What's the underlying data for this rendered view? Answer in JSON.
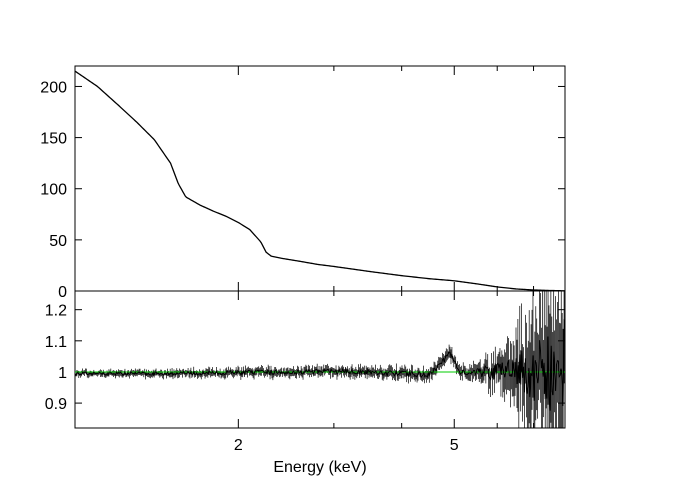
{
  "chart_data": [
    {
      "panel": "spectrum",
      "type": "line",
      "x_scale": "log",
      "xlim": [
        1.0,
        8.0
      ],
      "ylim": [
        0,
        220
      ],
      "ylabel": "",
      "xlabel": "",
      "yticks": [
        0,
        50,
        100,
        150,
        200
      ],
      "yticklabels": [
        "0",
        "50",
        "100",
        "150",
        "200"
      ],
      "series": [
        {
          "color": "#000000",
          "x": [
            1.0,
            1.1,
            1.2,
            1.3,
            1.4,
            1.5,
            1.55,
            1.6,
            1.7,
            1.8,
            1.9,
            2.0,
            2.1,
            2.2,
            2.25,
            2.3,
            2.4,
            2.6,
            2.8,
            3.0,
            3.5,
            4.0,
            4.5,
            5.0,
            5.5,
            6.0,
            6.5,
            7.0,
            7.5,
            8.0
          ],
          "y": [
            215,
            200,
            182,
            165,
            148,
            125,
            105,
            92,
            84,
            78,
            73,
            67,
            60,
            48,
            38,
            34,
            32,
            29,
            26,
            24,
            19,
            15,
            12,
            10,
            7,
            4,
            2,
            1,
            0.5,
            0.2
          ]
        }
      ]
    },
    {
      "panel": "ratio",
      "type": "line",
      "x_scale": "log",
      "xlim": [
        1.0,
        8.0
      ],
      "ylim": [
        0.82,
        1.26
      ],
      "xlabel": "Energy (keV)",
      "ylabel": "",
      "xticks": [
        2,
        5
      ],
      "xticklabels": [
        "2",
        "5"
      ],
      "yticks": [
        0.9,
        1.0,
        1.1,
        1.2
      ],
      "yticklabels": [
        "0.9",
        "1",
        "1.1",
        "1.2"
      ],
      "reference_line": {
        "y": 1.0,
        "color": "#00cc00"
      },
      "series": [
        {
          "color": "#000000",
          "x": [
            1.0,
            1.5,
            2.0,
            2.5,
            3.0,
            3.5,
            4.0,
            4.5,
            4.8,
            4.9,
            5.0,
            5.1,
            5.3,
            5.6,
            6.0,
            6.5,
            7.0,
            7.5,
            8.0
          ],
          "y": [
            0.995,
            0.995,
            0.998,
            1.0,
            1.002,
            1.0,
            0.995,
            0.99,
            1.04,
            1.07,
            1.03,
            1.0,
            1.0,
            1.0,
            1.0,
            1.01,
            1.0,
            1.0,
            1.0
          ]
        }
      ]
    }
  ]
}
